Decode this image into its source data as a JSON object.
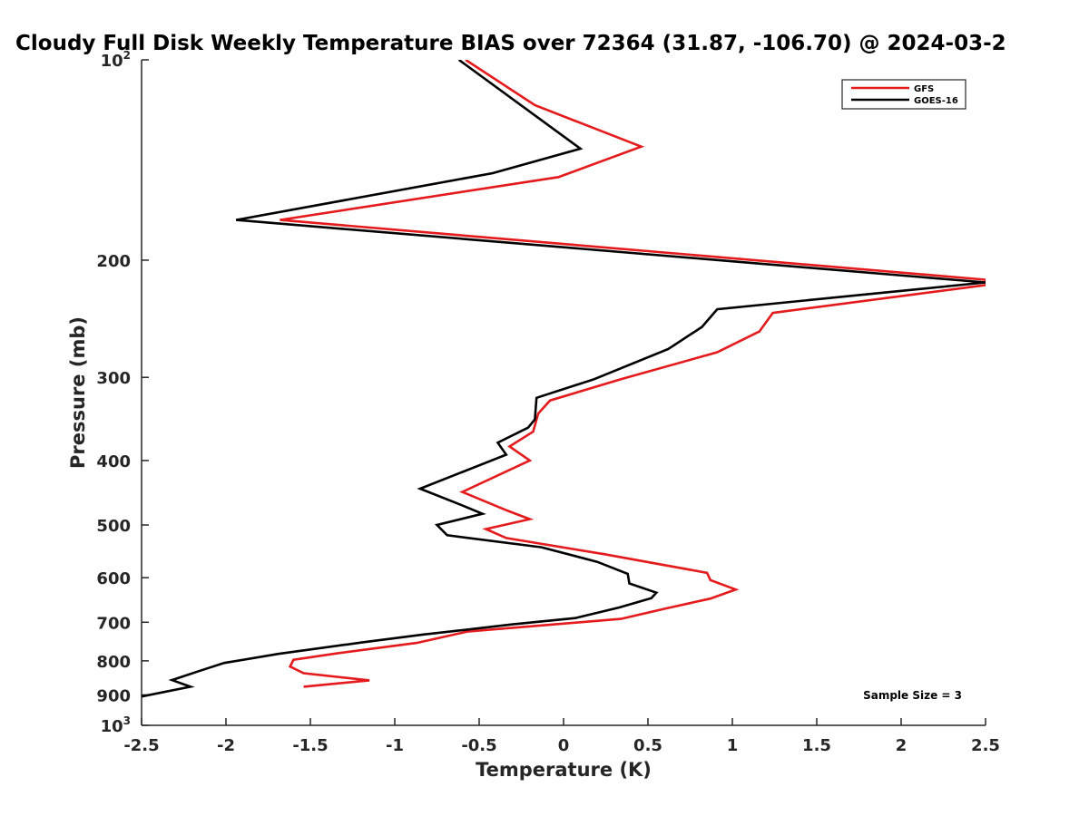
{
  "chart_data": {
    "type": "line",
    "title": "Cloudy Full Disk Weekly Temperature BIAS over 72364 (31.87, -106.70) @ 2024-03-2",
    "xlabel": "Temperature (K)",
    "ylabel": "Pressure (mb)",
    "xlim": [
      -2.5,
      2.5
    ],
    "ylim": [
      100,
      1000
    ],
    "y_scale": "log",
    "y_reversed": true,
    "x_ticks": [
      -2.5,
      -2,
      -1.5,
      -1,
      -0.5,
      0,
      0.5,
      1,
      1.5,
      2,
      2.5
    ],
    "x_tick_labels": [
      "-2.5",
      "-2",
      "-1.5",
      "-1",
      "-0.5",
      "0",
      "0.5",
      "1",
      "1.5",
      "2",
      "2.5"
    ],
    "y_ticks": [
      {
        "value": 100,
        "base": "10",
        "exp": "2"
      },
      {
        "value": 200,
        "label": "200"
      },
      {
        "value": 300,
        "label": "300"
      },
      {
        "value": 400,
        "label": "400"
      },
      {
        "value": 500,
        "label": "500"
      },
      {
        "value": 600,
        "label": "600"
      },
      {
        "value": 700,
        "label": "700"
      },
      {
        "value": 800,
        "label": "800"
      },
      {
        "value": 900,
        "label": "900"
      },
      {
        "value": 1000,
        "base": "10",
        "exp": "3"
      }
    ],
    "grid": false,
    "legend_position": "top-right",
    "annotation": "Sample Size = 3",
    "series": [
      {
        "name": "GFS",
        "color": "#e41a1c",
        "points": [
          [
            -0.58,
            100
          ],
          [
            -0.17,
            117
          ],
          [
            0.46,
            135
          ],
          [
            -0.03,
            150
          ],
          [
            -1.68,
            174
          ],
          [
            2.5,
            214
          ],
          [
            2.5,
            218
          ],
          [
            1.24,
            240
          ],
          [
            1.16,
            256
          ],
          [
            0.91,
            275
          ],
          [
            0.34,
            302
          ],
          [
            -0.08,
            325
          ],
          [
            -0.15,
            340
          ],
          [
            -0.18,
            362
          ],
          [
            -0.32,
            381
          ],
          [
            -0.2,
            400
          ],
          [
            -0.6,
            446
          ],
          [
            -0.33,
            476
          ],
          [
            -0.2,
            490
          ],
          [
            -0.46,
            507
          ],
          [
            -0.34,
            523
          ],
          [
            0.24,
            553
          ],
          [
            0.85,
            590
          ],
          [
            0.87,
            605
          ],
          [
            1.02,
            625
          ],
          [
            0.87,
            645
          ],
          [
            0.6,
            668
          ],
          [
            0.34,
            692
          ],
          [
            -0.57,
            723
          ],
          [
            -0.87,
            752
          ],
          [
            -1.35,
            780
          ],
          [
            -1.6,
            797
          ],
          [
            -1.62,
            816
          ],
          [
            -1.54,
            835
          ],
          [
            -1.15,
            856
          ],
          [
            -1.54,
            875
          ]
        ]
      },
      {
        "name": "GOES-16",
        "color": "#000000",
        "points": [
          [
            -0.62,
            100
          ],
          [
            0.1,
            136
          ],
          [
            -0.42,
            148
          ],
          [
            -1.94,
            174
          ],
          [
            2.5,
            216
          ],
          [
            0.91,
            237
          ],
          [
            0.82,
            252
          ],
          [
            0.62,
            272
          ],
          [
            0.18,
            302
          ],
          [
            -0.16,
            322
          ],
          [
            -0.17,
            347
          ],
          [
            -0.21,
            357
          ],
          [
            -0.39,
            376
          ],
          [
            -0.34,
            392
          ],
          [
            -0.85,
            441
          ],
          [
            -0.62,
            465
          ],
          [
            -0.48,
            481
          ],
          [
            -0.75,
            500
          ],
          [
            -0.69,
            518
          ],
          [
            -0.13,
            540
          ],
          [
            0.2,
            568
          ],
          [
            0.38,
            592
          ],
          [
            0.39,
            612
          ],
          [
            0.55,
            632
          ],
          [
            0.52,
            644
          ],
          [
            0.33,
            665
          ],
          [
            0.07,
            690
          ],
          [
            -0.3,
            705
          ],
          [
            -0.84,
            731
          ],
          [
            -1.2,
            751
          ],
          [
            -1.69,
            781
          ],
          [
            -2.01,
            806
          ],
          [
            -2.16,
            829
          ],
          [
            -2.32,
            855
          ],
          [
            -2.21,
            875
          ],
          [
            -2.5,
            905
          ]
        ]
      }
    ]
  }
}
